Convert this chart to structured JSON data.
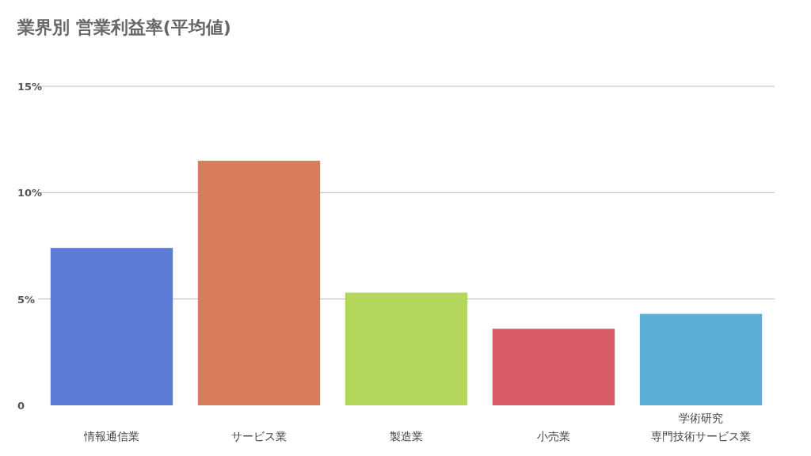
{
  "chart_data": {
    "type": "bar",
    "title": "業界別 営業利益率(平均値)",
    "categories": [
      "情報通信業",
      "サービス業",
      "製造業",
      "小売業",
      "学術研究専門技術サービス業"
    ],
    "values": [
      7.4,
      11.5,
      5.3,
      3.6,
      4.3
    ],
    "colors": [
      "#5b7bd6",
      "#d77c5c",
      "#b3d65c",
      "#d75a66",
      "#5bafd6"
    ],
    "ylim": [
      0,
      15
    ],
    "yticks": [
      {
        "value": 0,
        "label": "0"
      },
      {
        "value": 5,
        "label": "5%"
      },
      {
        "value": 10,
        "label": "10%"
      },
      {
        "value": 15,
        "label": "15%"
      }
    ],
    "grid": "y"
  }
}
